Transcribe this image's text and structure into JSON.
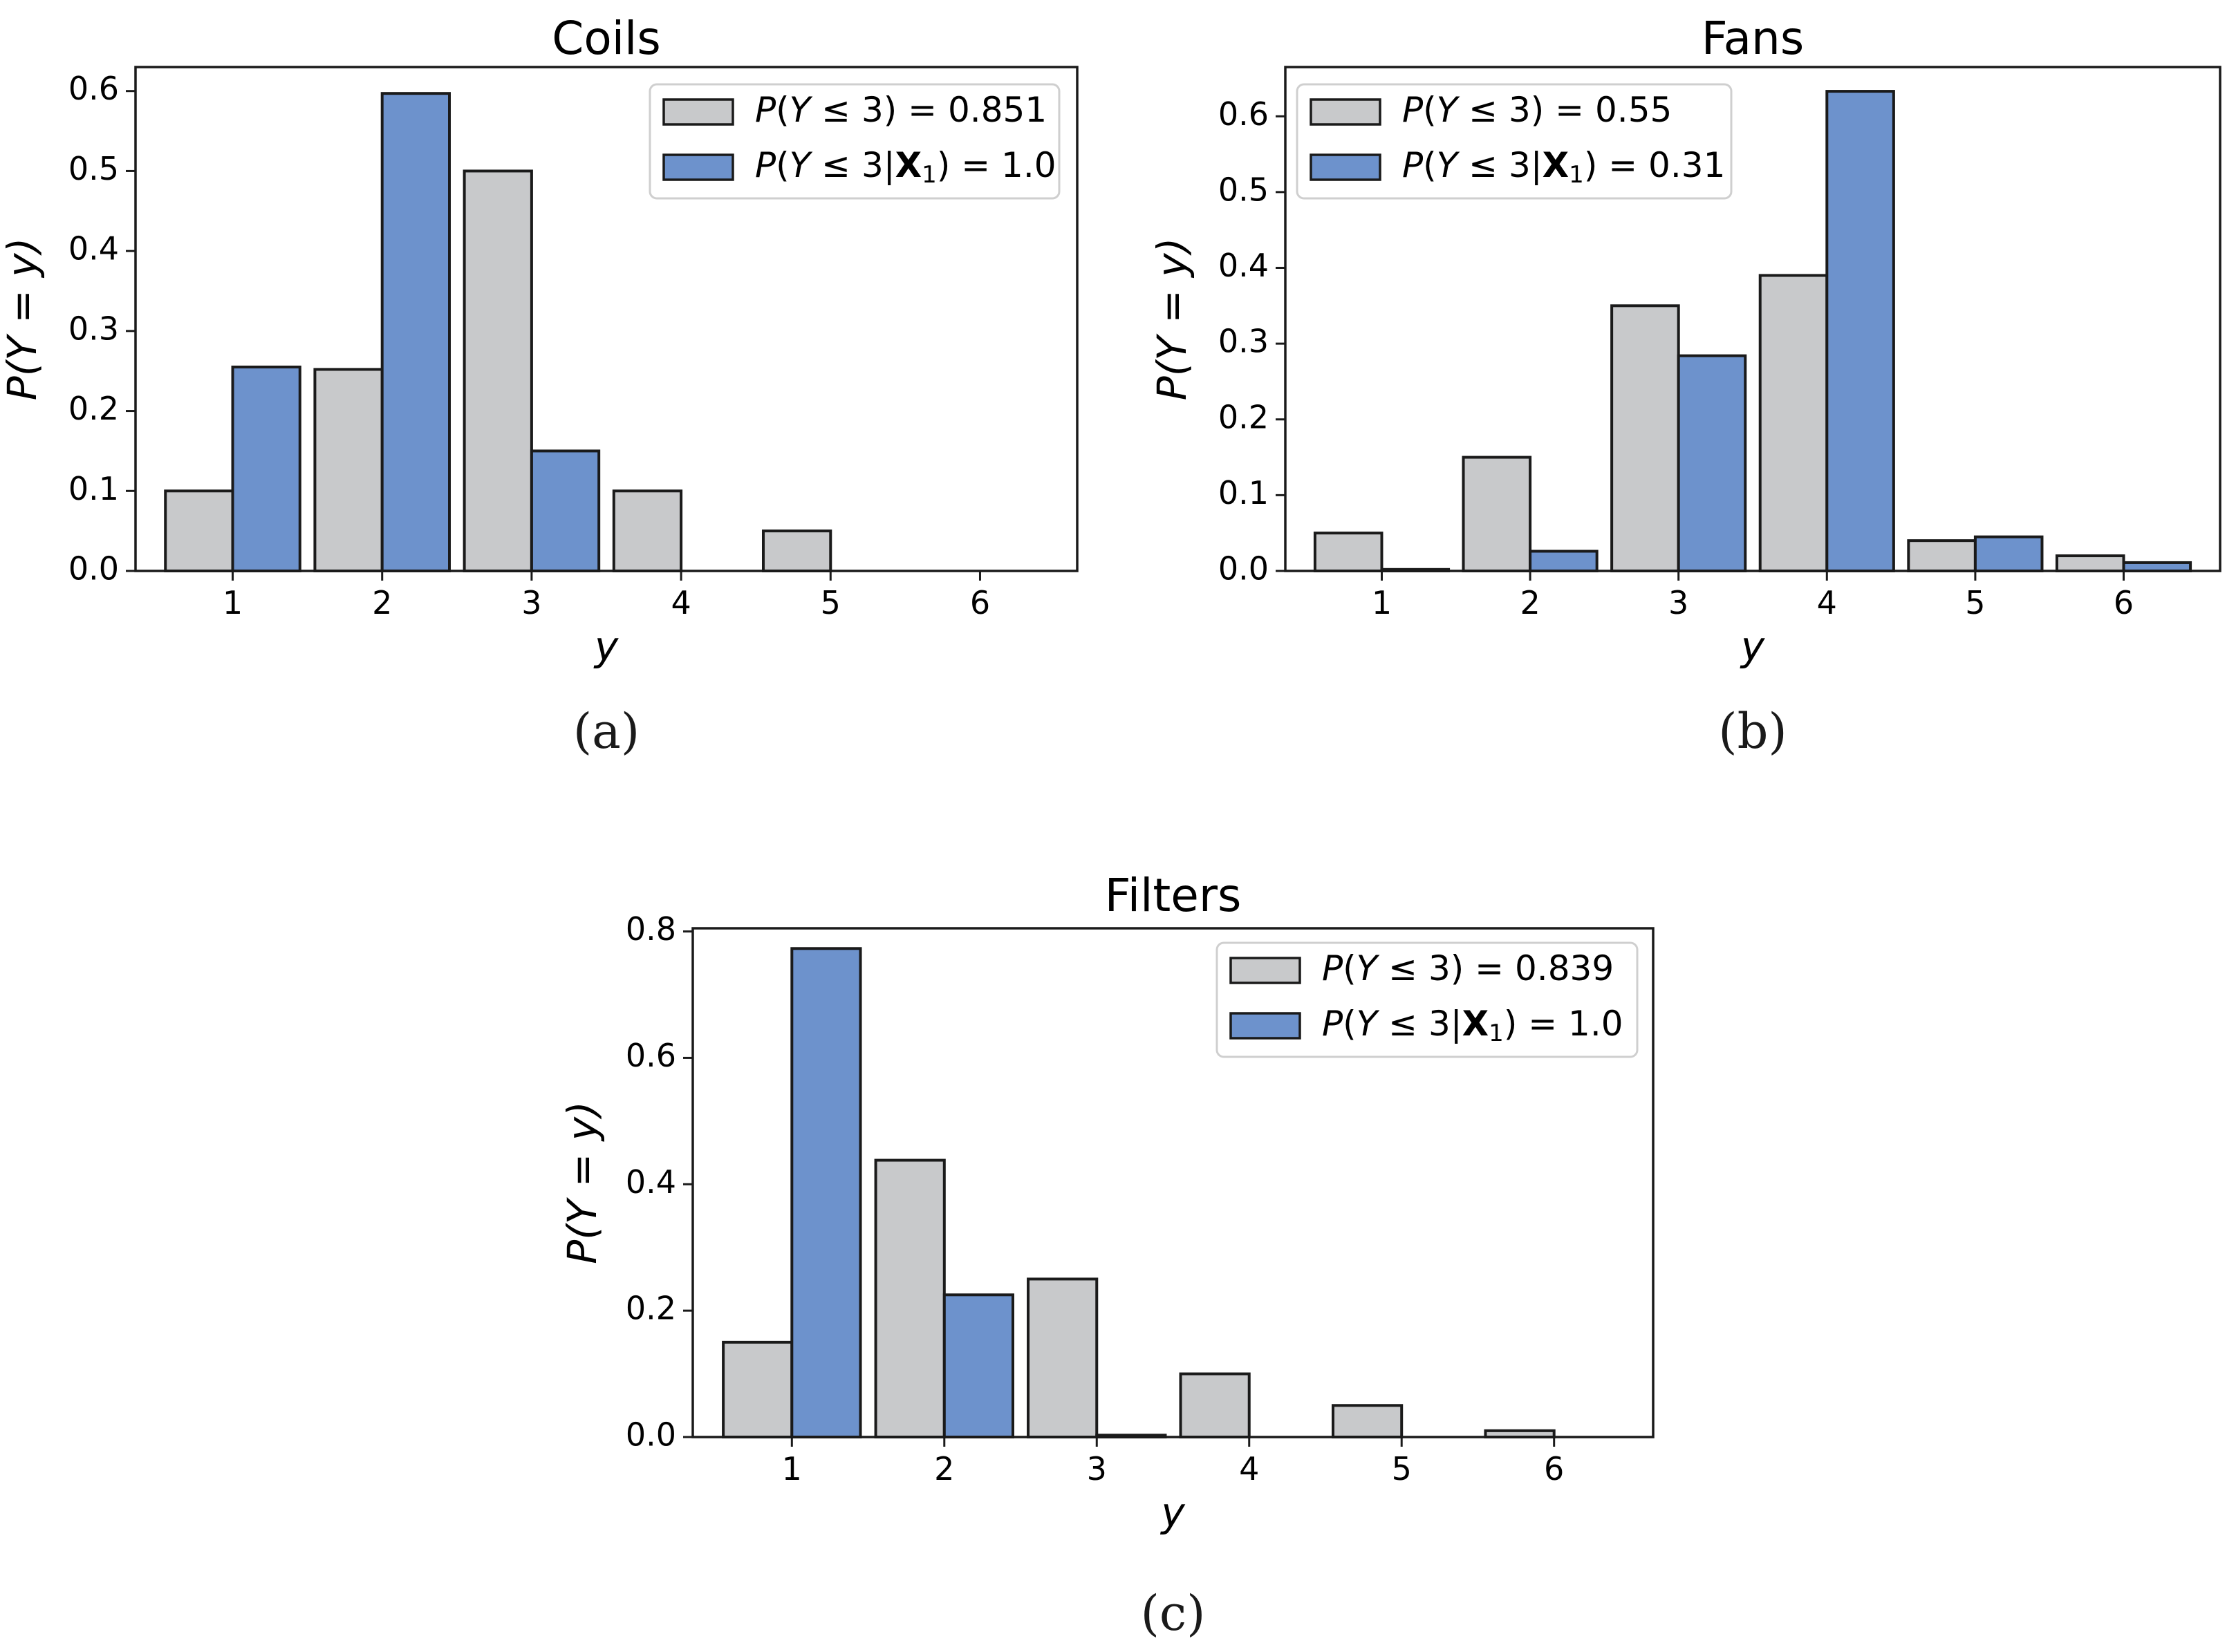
{
  "figure": {
    "colors": {
      "prior": "#c8c9cb",
      "posterior": "#6d92cc",
      "edge": "#1a1a1a"
    }
  },
  "chart_data": [
    {
      "type": "bar",
      "panel": "(a)",
      "title": "Coils",
      "xlabel": "y",
      "ylabel": "P(Y = y)",
      "categories": [
        "1",
        "2",
        "3",
        "4",
        "5",
        "6"
      ],
      "ylim": [
        0,
        0.63
      ],
      "yticks": [
        "0.0",
        "0.1",
        "0.2",
        "0.3",
        "0.4",
        "0.5",
        "0.6"
      ],
      "legend_position": "top-right",
      "series": [
        {
          "name": "P(Y ≤ 3) = 0.851",
          "color": "#c8c9cb",
          "values": [
            0.1,
            0.252,
            0.5,
            0.1,
            0.05,
            0.0
          ]
        },
        {
          "name": "P(Y ≤ 3|X₁) = 1.0",
          "color": "#6d92cc",
          "values": [
            0.255,
            0.597,
            0.15,
            0.0,
            0.0,
            0.0
          ]
        }
      ]
    },
    {
      "type": "bar",
      "panel": "(b)",
      "title": "Fans",
      "xlabel": "y",
      "ylabel": "P(Y = y)",
      "categories": [
        "1",
        "2",
        "3",
        "4",
        "5",
        "6"
      ],
      "ylim": [
        0,
        0.665
      ],
      "yticks": [
        "0.0",
        "0.1",
        "0.2",
        "0.3",
        "0.4",
        "0.5",
        "0.6"
      ],
      "legend_position": "top-left",
      "series": [
        {
          "name": "P(Y ≤ 3) = 0.55",
          "color": "#c8c9cb",
          "values": [
            0.05,
            0.15,
            0.35,
            0.39,
            0.04,
            0.02
          ]
        },
        {
          "name": "P(Y ≤ 3|X₁) = 0.31",
          "color": "#6d92cc",
          "values": [
            0.002,
            0.026,
            0.284,
            0.633,
            0.045,
            0.011
          ]
        }
      ]
    },
    {
      "type": "bar",
      "panel": "(c)",
      "title": "Filters",
      "xlabel": "y",
      "ylabel": "P(Y = y)",
      "categories": [
        "1",
        "2",
        "3",
        "4",
        "5",
        "6"
      ],
      "ylim": [
        0,
        0.805
      ],
      "yticks": [
        "0.0",
        "0.2",
        "0.4",
        "0.6",
        "0.8"
      ],
      "legend_position": "top-right",
      "series": [
        {
          "name": "P(Y ≤ 3) = 0.839",
          "color": "#c8c9cb",
          "values": [
            0.15,
            0.438,
            0.25,
            0.1,
            0.05,
            0.01
          ]
        },
        {
          "name": "P(Y ≤ 3|X₁) = 1.0",
          "color": "#6d92cc",
          "values": [
            0.773,
            0.225,
            0.003,
            0.0,
            0.0,
            0.0
          ]
        }
      ]
    }
  ]
}
